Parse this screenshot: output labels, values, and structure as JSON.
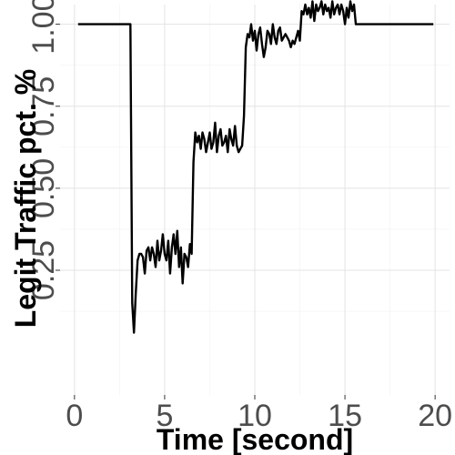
{
  "chart_data": {
    "type": "line",
    "title": "",
    "xlabel": "Time [second]",
    "ylabel": "Legit Traffic pct. %",
    "xlim": [
      -0.8,
      20.8
    ],
    "ylim": [
      -0.13,
      1.06
    ],
    "x_ticks": [
      0,
      5,
      10,
      15,
      20
    ],
    "x_tick_labels": [
      "0",
      "5",
      "10",
      "15",
      "20"
    ],
    "y_ticks": [
      0.25,
      0.5,
      0.75,
      1.0
    ],
    "y_tick_labels": [
      "0.25",
      "0.50",
      "0.75",
      "1.00"
    ],
    "grid": true,
    "legend": "none",
    "series": [
      {
        "color": "#000000",
        "x": [
          0.2,
          3.1,
          3.2,
          3.3,
          3.4,
          3.5,
          3.6,
          3.7,
          3.8,
          3.9,
          4.0,
          4.1,
          4.2,
          4.3,
          4.4,
          4.5,
          4.6,
          4.7,
          4.8,
          4.9,
          5.0,
          5.1,
          5.2,
          5.3,
          5.4,
          5.5,
          5.6,
          5.7,
          5.8,
          5.9,
          6.0,
          6.1,
          6.2,
          6.3,
          6.4,
          6.5,
          6.6,
          6.7,
          6.8,
          6.9,
          7.0,
          7.1,
          7.2,
          7.3,
          7.4,
          7.5,
          7.6,
          7.7,
          7.8,
          7.9,
          8.0,
          8.1,
          8.2,
          8.3,
          8.4,
          8.5,
          8.6,
          8.7,
          8.8,
          8.9,
          9.0,
          9.1,
          9.2,
          9.3,
          9.4,
          9.5,
          9.6,
          9.7,
          9.8,
          9.9,
          10.0,
          10.1,
          10.2,
          10.3,
          10.4,
          10.5,
          10.6,
          10.7,
          10.8,
          10.9,
          11.0,
          11.1,
          11.2,
          11.3,
          11.4,
          11.5,
          11.6,
          11.7,
          11.8,
          11.9,
          12.0,
          12.1,
          12.2,
          12.3,
          12.4,
          12.5,
          12.6,
          12.7,
          12.8,
          12.9,
          13.0,
          13.1,
          13.2,
          13.3,
          13.4,
          13.5,
          13.6,
          13.7,
          13.8,
          13.9,
          14.0,
          14.1,
          14.2,
          14.3,
          14.4,
          14.5,
          14.6,
          14.7,
          14.8,
          14.9,
          15.0,
          15.1,
          15.2,
          15.3,
          15.4,
          15.5,
          15.6,
          19.9
        ],
        "y": [
          1.0,
          1.0,
          0.15,
          0.06,
          0.18,
          0.28,
          0.3,
          0.3,
          0.29,
          0.24,
          0.31,
          0.32,
          0.28,
          0.32,
          0.3,
          0.26,
          0.34,
          0.28,
          0.31,
          0.36,
          0.3,
          0.28,
          0.34,
          0.24,
          0.32,
          0.36,
          0.3,
          0.37,
          0.26,
          0.32,
          0.21,
          0.3,
          0.29,
          0.26,
          0.33,
          0.3,
          0.58,
          0.67,
          0.64,
          0.66,
          0.62,
          0.67,
          0.65,
          0.61,
          0.64,
          0.67,
          0.62,
          0.64,
          0.7,
          0.61,
          0.66,
          0.68,
          0.63,
          0.64,
          0.66,
          0.61,
          0.68,
          0.65,
          0.63,
          0.69,
          0.63,
          0.61,
          0.62,
          0.63,
          0.72,
          0.93,
          0.97,
          0.96,
          1.0,
          0.95,
          0.98,
          0.92,
          0.97,
          0.99,
          0.94,
          0.9,
          0.93,
          0.98,
          0.97,
          0.94,
          1.0,
          0.96,
          0.94,
          0.98,
          0.99,
          0.95,
          0.96,
          0.97,
          0.96,
          0.95,
          0.93,
          0.95,
          0.94,
          0.96,
          0.98,
          0.95,
          1.04,
          1.03,
          1.06,
          1.03,
          1.05,
          1.02,
          1.07,
          1.01,
          1.06,
          1.04,
          1.05,
          1.07,
          1.03,
          1.06,
          1.04,
          1.05,
          1.02,
          1.07,
          1.03,
          1.05,
          1.06,
          1.03,
          1.06,
          1.04,
          1.0,
          1.05,
          1.02,
          1.07,
          1.04,
          1.06,
          1.0,
          1.0
        ]
      }
    ]
  }
}
